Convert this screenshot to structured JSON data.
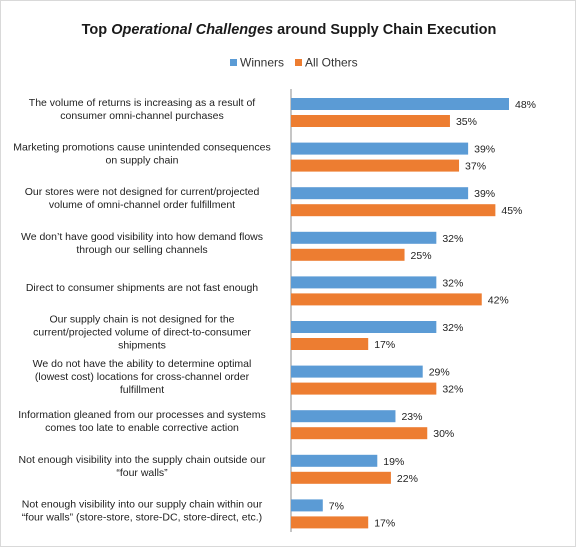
{
  "chart_data": {
    "type": "bar",
    "orientation": "horizontal",
    "title_parts": [
      {
        "text": "Top ",
        "italic": false
      },
      {
        "text": "Operational Challenges",
        "italic": true
      },
      {
        "text": " around Supply Chain Execution",
        "italic": false
      }
    ],
    "legend_position": "top",
    "grid": false,
    "xlim": [
      0,
      50
    ],
    "value_suffix": "%",
    "categories": [
      [
        "The volume of returns is increasing as a result of",
        "consumer omni-channel purchases"
      ],
      [
        "Marketing promotions cause unintended consequences",
        "on supply chain"
      ],
      [
        "Our stores were not designed for current/projected",
        "volume of omni-channel order fulfillment"
      ],
      [
        "We don’t have good visibility into how demand flows",
        "through our selling channels"
      ],
      [
        "Direct to consumer shipments are not fast enough"
      ],
      [
        "Our supply chain is not designed for the",
        "current/projected volume of direct-to-consumer",
        "shipments"
      ],
      [
        "We do not have the ability to determine optimal",
        "(lowest cost) locations for cross-channel order",
        "fulfillment"
      ],
      [
        "Information gleaned from our processes and systems",
        "comes too late to enable corrective action"
      ],
      [
        "Not enough visibility into the supply chain outside our",
        "“four walls”"
      ],
      [
        "Not enough visibility into our supply chain within our",
        "“four walls” (store-store, store-DC, store-direct, etc.)"
      ]
    ],
    "series": [
      {
        "name": "Winners",
        "color": "#5b9bd5",
        "values": [
          48,
          39,
          39,
          32,
          32,
          32,
          29,
          23,
          19,
          7
        ]
      },
      {
        "name": "All Others",
        "color": "#ed7d31",
        "values": [
          35,
          37,
          45,
          25,
          42,
          17,
          32,
          30,
          22,
          17
        ]
      }
    ]
  }
}
